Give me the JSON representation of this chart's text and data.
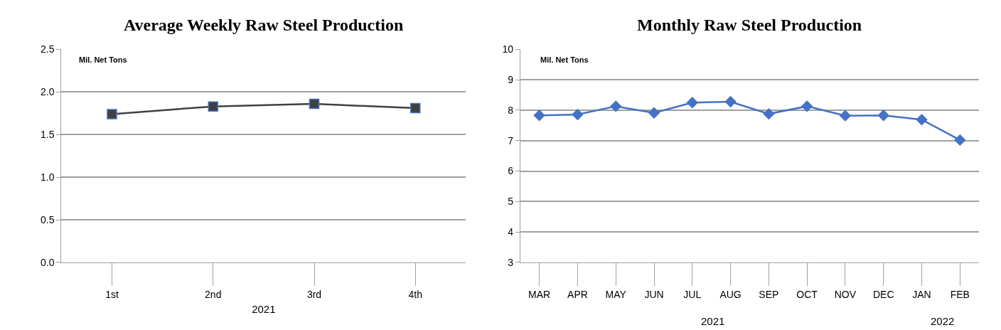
{
  "chart_data": [
    {
      "type": "line",
      "title": "Average Weekly Raw Steel Production",
      "ylabel": "Mil. Net Tons",
      "xlabel": "2021",
      "categories": [
        "1st",
        "2nd",
        "3rd",
        "4th"
      ],
      "series": [
        {
          "color": "#404040",
          "values": [
            1.74,
            1.83,
            1.86,
            1.81
          ]
        }
      ],
      "ylim": [
        0,
        2.5
      ],
      "yticks": [
        {
          "value": 0,
          "label": "0.0"
        },
        0.5,
        {
          "value": 1,
          "label": "1.0"
        },
        1.5,
        {
          "value": 2,
          "label": "2.0"
        },
        2.5
      ],
      "grid": "y",
      "marker": "square"
    },
    {
      "type": "line",
      "title": "Monthly Raw Steel Production",
      "ylabel": "Mil. Net Tons",
      "categories": [
        "MAR",
        "APR",
        "MAY",
        "JUN",
        "JUL",
        "AUG",
        "SEP",
        "OCT",
        "NOV",
        "DEC",
        "JAN",
        "FEB"
      ],
      "series": [
        {
          "color": "#4472c4",
          "values": [
            7.83,
            7.86,
            8.13,
            7.91,
            8.25,
            8.28,
            7.88,
            8.13,
            7.82,
            7.83,
            7.69,
            7.02
          ]
        }
      ],
      "annotations": [
        "2021",
        "2022"
      ],
      "ylim": [
        3,
        10
      ],
      "yticks": [
        3,
        4,
        5,
        6,
        7,
        8,
        9,
        10
      ],
      "grid": "y",
      "marker": "diamond"
    }
  ]
}
